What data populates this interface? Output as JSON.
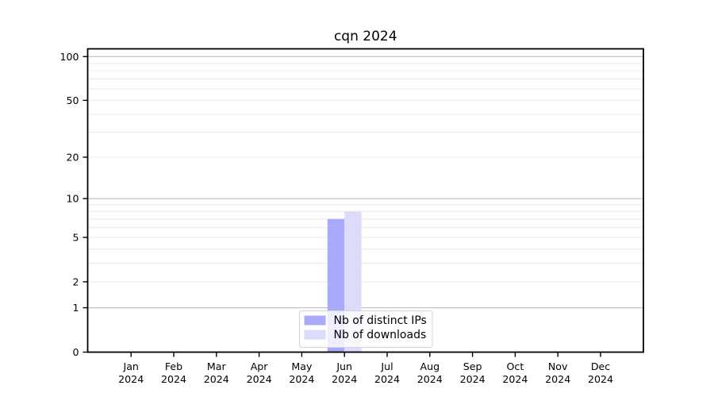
{
  "window": {
    "background": "#ffffff"
  },
  "chart_data": {
    "type": "bar",
    "title": "cqn 2024",
    "categories": [
      "Jan 2024",
      "Feb 2024",
      "Mar 2024",
      "Apr 2024",
      "May 2024",
      "Jun 2024",
      "Jul 2024",
      "Aug 2024",
      "Sep 2024",
      "Oct 2024",
      "Nov 2024",
      "Dec 2024"
    ],
    "series": [
      {
        "name": "Nb of distinct IPs",
        "color": "#aaaafa",
        "values": [
          0,
          0,
          0,
          0,
          0,
          7,
          0,
          0,
          0,
          0,
          0,
          0
        ]
      },
      {
        "name": "Nb of downloads",
        "color": "#dcdcfa",
        "values": [
          0,
          0,
          0,
          0,
          0,
          8,
          0,
          0,
          0,
          0,
          0,
          0
        ]
      }
    ],
    "xlabel": "",
    "ylabel": "",
    "y_axis": {
      "scale": "log1p",
      "ticks": [
        0,
        1,
        2,
        5,
        10,
        20,
        50,
        100
      ],
      "major_gridlines": [
        1,
        10,
        100
      ],
      "minor_gridlines": [
        2,
        3,
        4,
        5,
        6,
        7,
        8,
        9,
        20,
        30,
        40,
        50,
        60,
        70,
        80,
        90
      ],
      "ylim": [
        0,
        113
      ]
    },
    "legend": {
      "position": "lower center",
      "entries": [
        "Nb of distinct IPs",
        "Nb of downloads"
      ]
    },
    "grid": true
  },
  "colors": {
    "background": "#ffffff",
    "axis": "#000000",
    "grid_major": "#c3c3c3",
    "grid_minor": "#ececec",
    "bar_ips": "#aaaafa",
    "bar_downloads": "#dcdcfa",
    "legend_border": "#d4d4d4",
    "legend_bg_alpha": "rgba(255,255,255,0.8)",
    "text": "#000000"
  }
}
